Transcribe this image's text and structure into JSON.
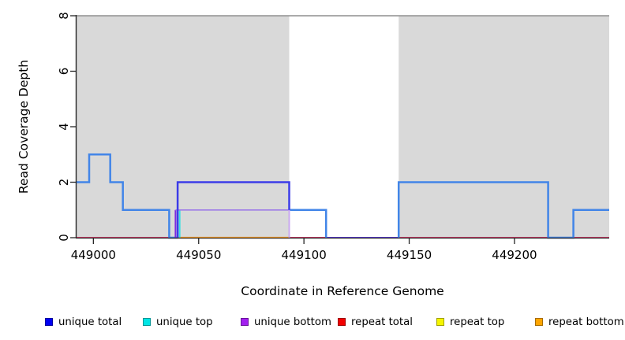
{
  "chart_data": {
    "type": "line",
    "subtype": "step-coverage",
    "title": "",
    "xlabel": "Coordinate in Reference Genome",
    "ylabel": "Read Coverage Depth",
    "xlim": [
      448992,
      449245
    ],
    "ylim": [
      0,
      8
    ],
    "grid": false,
    "legend_position": "bottom",
    "xticks": [
      {
        "value": 449000,
        "label": "449000"
      },
      {
        "value": 449050,
        "label": "449050"
      },
      {
        "value": 449100,
        "label": "449100"
      },
      {
        "value": 449150,
        "label": "449150"
      },
      {
        "value": 449200,
        "label": "449200"
      }
    ],
    "yticks": [
      {
        "value": 0,
        "label": "0"
      },
      {
        "value": 2,
        "label": "2"
      },
      {
        "value": 4,
        "label": "4"
      },
      {
        "value": 6,
        "label": "6"
      },
      {
        "value": 8,
        "label": "8"
      }
    ],
    "legend": [
      {
        "id": "unique-total",
        "label": "unique total",
        "color": "#0000f2"
      },
      {
        "id": "unique-top",
        "label": "unique top",
        "color": "#00e5e5"
      },
      {
        "id": "unique-bottom",
        "label": "unique bottom",
        "color": "#a21fef"
      },
      {
        "id": "repeat-total",
        "label": "repeat total",
        "color": "#f20000"
      },
      {
        "id": "repeat-top",
        "label": "repeat top",
        "color": "#f5f500"
      },
      {
        "id": "repeat-bottom",
        "label": "repeat bottom",
        "color": "#ffa500"
      }
    ],
    "repeat_regions": [
      {
        "start": 448992,
        "end": 449093
      },
      {
        "start": 449145,
        "end": 449245
      }
    ],
    "repeat_region_color": "#d9d9d9",
    "series": [
      {
        "name": "unique total",
        "step_points": [
          [
            448992,
            2
          ],
          [
            448998,
            3
          ],
          [
            449008,
            2
          ],
          [
            449014,
            1
          ],
          [
            449036,
            0
          ],
          [
            449040,
            2
          ],
          [
            449093,
            1
          ],
          [
            449111,
            0
          ],
          [
            449145,
            2
          ],
          [
            449216,
            0
          ],
          [
            449228,
            1
          ],
          [
            449245,
            1
          ]
        ]
      },
      {
        "name": "unique top",
        "step_points": [
          [
            448992,
            2
          ],
          [
            448998,
            3
          ],
          [
            449008,
            2
          ],
          [
            449014,
            1
          ],
          [
            449036,
            0
          ],
          [
            449041,
            1
          ],
          [
            449111,
            0
          ],
          [
            449145,
            2
          ],
          [
            449216,
            0
          ],
          [
            449228,
            1
          ],
          [
            449245,
            1
          ]
        ]
      },
      {
        "name": "unique bottom",
        "step_points": [
          [
            448992,
            0
          ],
          [
            449039,
            1
          ],
          [
            449093,
            0
          ],
          [
            449245,
            0
          ]
        ]
      },
      {
        "name": "repeat total",
        "step_points": [
          [
            448992,
            0
          ],
          [
            449245,
            0
          ]
        ]
      },
      {
        "name": "repeat top",
        "step_points": [
          [
            448992,
            0
          ],
          [
            449245,
            0
          ]
        ]
      },
      {
        "name": "repeat bottom",
        "step_points": [
          [
            448992,
            0
          ],
          [
            449245,
            0
          ]
        ]
      }
    ],
    "rendered_lines": [
      {
        "name": "max-depth-top-line",
        "color": "#8f8f8f",
        "width": 1.4,
        "points": [
          [
            448992,
            8
          ],
          [
            449245,
            8
          ]
        ]
      },
      {
        "name": "repeat-total-baseline",
        "color": "#d23b69",
        "width": 2.0,
        "points": [
          [
            448992,
            0
          ],
          [
            449245,
            0
          ]
        ]
      },
      {
        "name": "repeat-bottom-segment",
        "color": "#ffa126",
        "width": 2.2,
        "points": [
          [
            449039,
            0
          ],
          [
            449093,
            0
          ]
        ]
      },
      {
        "name": "unique-zero-violet-segment",
        "color": "#5b3bd8",
        "width": 2.0,
        "points": [
          [
            449110.5,
            0
          ],
          [
            449145,
            0
          ]
        ]
      },
      {
        "name": "azure-coverage-left",
        "color": "#4285e8",
        "width": 2.5,
        "points": [
          [
            448992,
            2
          ],
          [
            448998,
            2
          ],
          [
            448998,
            3
          ],
          [
            449008,
            3
          ],
          [
            449008,
            2
          ],
          [
            449014,
            2
          ],
          [
            449014,
            1
          ],
          [
            449036,
            1
          ],
          [
            449036,
            0
          ],
          [
            449040,
            0
          ]
        ]
      },
      {
        "name": "azure-coverage-gap",
        "color": "#4285e8",
        "width": 2.5,
        "points": [
          [
            449093,
            1
          ],
          [
            449110.5,
            1
          ],
          [
            449110.5,
            0
          ]
        ]
      },
      {
        "name": "azure-coverage-right",
        "color": "#4285e8",
        "width": 2.5,
        "points": [
          [
            449145,
            0
          ],
          [
            449145,
            2
          ],
          [
            449216,
            2
          ],
          [
            449216,
            0
          ],
          [
            449228,
            0
          ],
          [
            449228,
            1
          ],
          [
            449245,
            1
          ]
        ]
      },
      {
        "name": "unique-bottom-rise",
        "color": "#7c2be0",
        "width": 2.0,
        "points": [
          [
            449039,
            0
          ],
          [
            449039,
            1
          ]
        ]
      },
      {
        "name": "unique-top-rise",
        "color": "#3fe0e0",
        "width": 2.0,
        "points": [
          [
            449041,
            0
          ],
          [
            449041,
            1
          ]
        ]
      },
      {
        "name": "unique-bottom-horizontal",
        "color": "#9d7be8",
        "width": 1.6,
        "points": [
          [
            449039,
            1
          ],
          [
            449093,
            1
          ]
        ]
      },
      {
        "name": "unique-bottom-drop",
        "color": "#c9a8f0",
        "width": 2.0,
        "points": [
          [
            449093,
            1
          ],
          [
            449093,
            0
          ]
        ]
      },
      {
        "name": "unique-total-dark",
        "color": "#3c3ce8",
        "width": 2.5,
        "points": [
          [
            449040,
            0
          ],
          [
            449040,
            2
          ],
          [
            449093,
            2
          ],
          [
            449093,
            1
          ]
        ]
      }
    ],
    "axis_color": "#262626"
  }
}
